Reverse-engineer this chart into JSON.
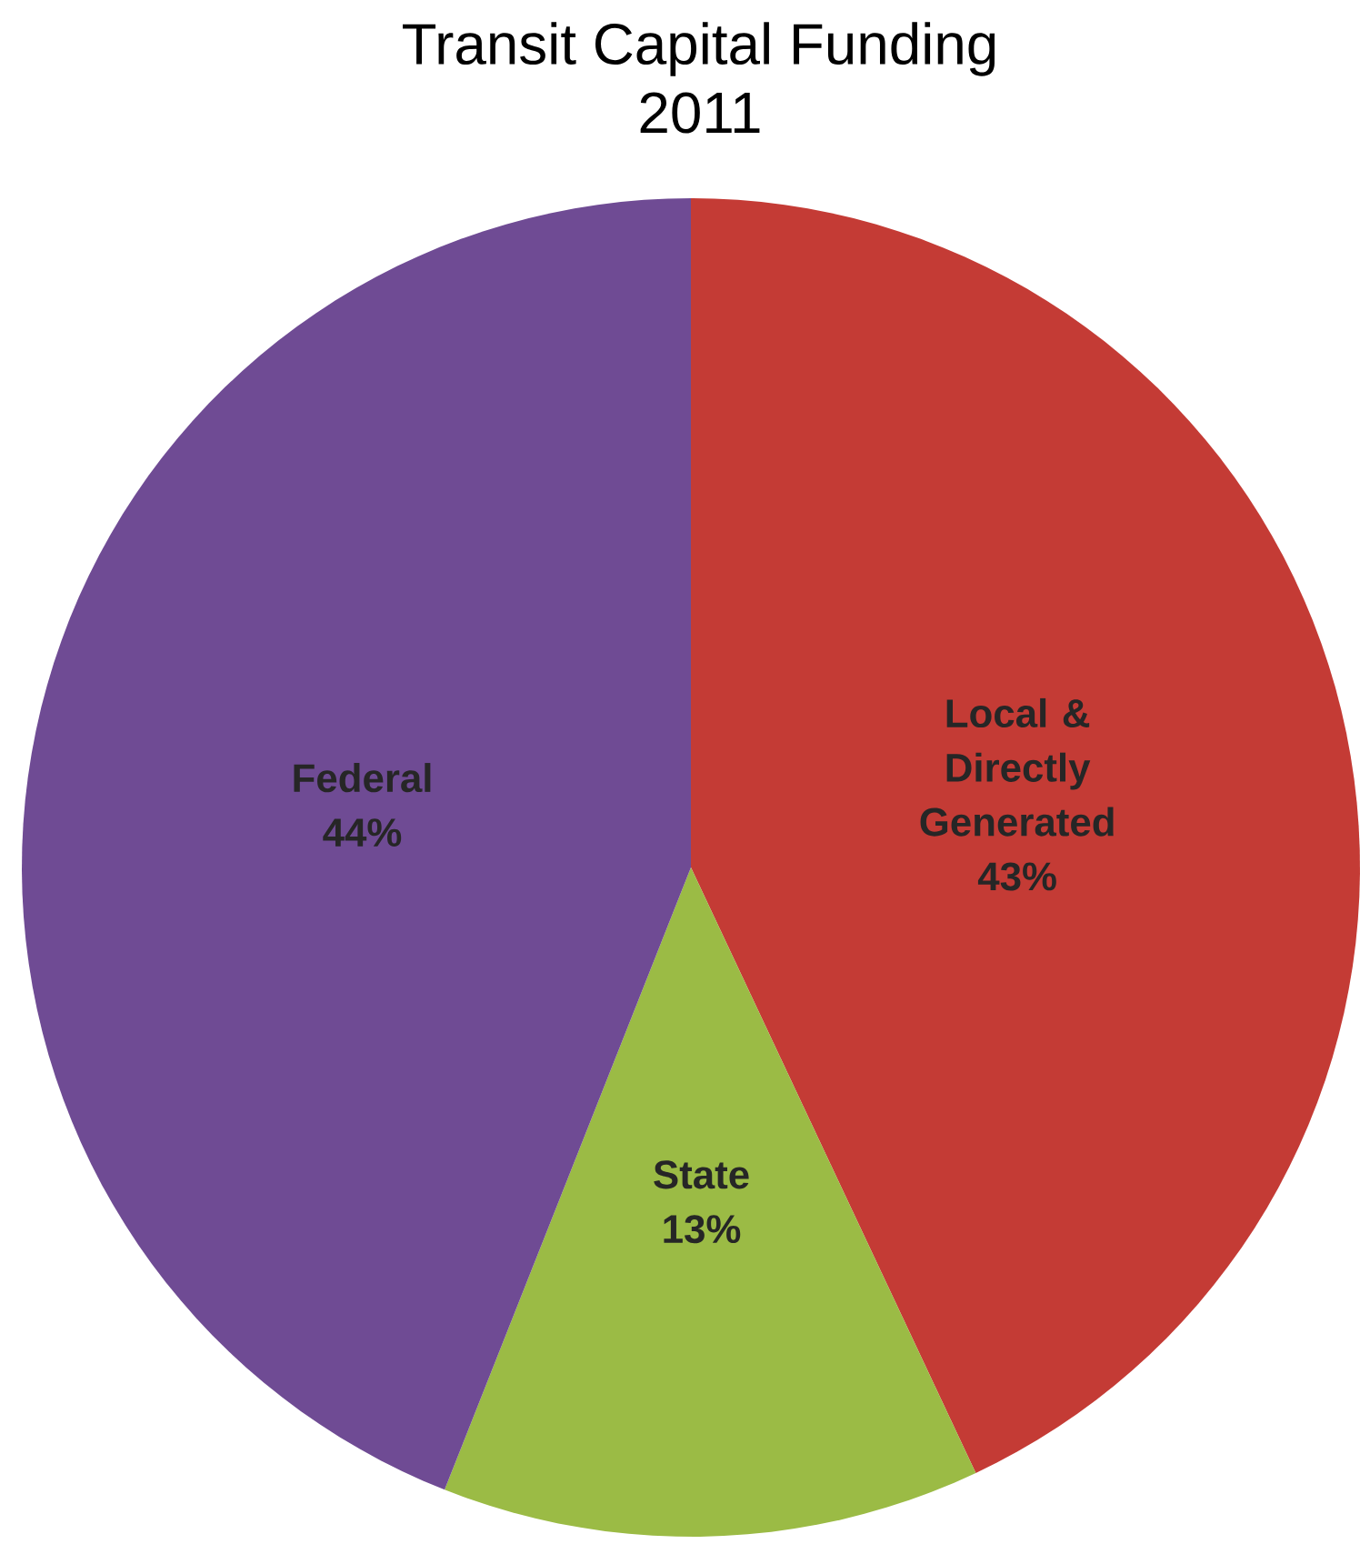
{
  "chart_data": {
    "type": "pie",
    "title": "Transit Capital Funding",
    "subtitle": "2011",
    "categories": [
      "Local & Directly Generated",
      "State",
      "Federal"
    ],
    "values": [
      43,
      13,
      44
    ],
    "value_labels": [
      "43%",
      "13%",
      "44%"
    ],
    "colors": [
      "#c43b35",
      "#9bbb45",
      "#6f4b94"
    ]
  }
}
